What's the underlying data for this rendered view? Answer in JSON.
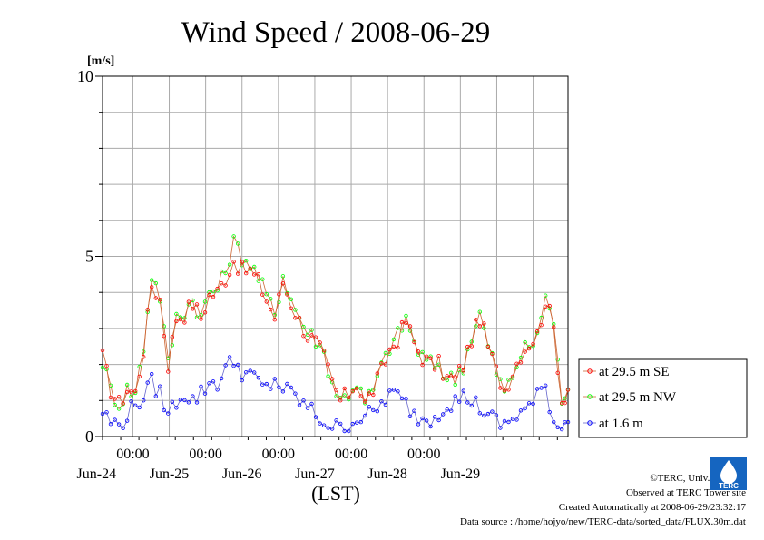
{
  "chart_data": {
    "type": "line",
    "title": "Wind Speed / 2008-06-29",
    "ylabel": "[m/s]",
    "xlabel": "(LST)",
    "ylim": [
      0,
      10
    ],
    "yticks": [
      "0",
      "5",
      "10"
    ],
    "xlim": [
      "2008-06-23 14:00",
      "2008-06-29 23:30"
    ],
    "time_tick_label": "00:00",
    "date_labels": [
      "Jun-24",
      "Jun-25",
      "Jun-26",
      "Jun-27",
      "Jun-28",
      "Jun-29"
    ],
    "time_step_hours": 0.5,
    "grid": true,
    "legend_position": "right",
    "series": [
      {
        "name": "at 29.5 m SE",
        "color": "#ff0000",
        "marker": "circle",
        "anchors": [
          [
            0,
            2.2
          ],
          [
            2,
            1.3
          ],
          [
            4,
            0.9
          ],
          [
            6,
            1.3
          ],
          [
            8,
            1.2
          ],
          [
            10,
            2.4
          ],
          [
            12,
            4.2
          ],
          [
            14,
            3.8
          ],
          [
            16,
            2.0
          ],
          [
            18,
            3.3
          ],
          [
            20,
            3.4
          ],
          [
            22,
            3.7
          ],
          [
            24,
            3.3
          ],
          [
            26,
            3.9
          ],
          [
            28,
            4.0
          ],
          [
            30,
            4.4
          ],
          [
            32,
            4.9
          ],
          [
            34,
            4.6
          ],
          [
            36,
            4.6
          ],
          [
            38,
            4.3
          ],
          [
            40,
            3.8
          ],
          [
            42,
            3.3
          ],
          [
            44,
            4.3
          ],
          [
            46,
            3.7
          ],
          [
            48,
            3.2
          ],
          [
            50,
            2.8
          ],
          [
            52,
            2.6
          ],
          [
            54,
            2.2
          ],
          [
            56,
            1.5
          ],
          [
            58,
            1.0
          ],
          [
            60,
            1.2
          ],
          [
            62,
            1.5
          ],
          [
            64,
            0.9
          ],
          [
            66,
            1.3
          ],
          [
            68,
            1.8
          ],
          [
            70,
            2.4
          ],
          [
            72,
            2.7
          ],
          [
            74,
            3.2
          ],
          [
            76,
            2.6
          ],
          [
            78,
            2.2
          ],
          [
            80,
            2.0
          ],
          [
            82,
            2.0
          ],
          [
            84,
            1.6
          ],
          [
            86,
            1.6
          ],
          [
            88,
            2.0
          ],
          [
            90,
            2.7
          ],
          [
            92,
            3.3
          ],
          [
            94,
            2.5
          ],
          [
            96,
            1.8
          ],
          [
            98,
            1.3
          ],
          [
            100,
            1.8
          ],
          [
            102,
            2.3
          ],
          [
            104,
            2.6
          ],
          [
            106,
            2.8
          ],
          [
            108,
            3.8
          ],
          [
            110,
            3.0
          ],
          [
            112,
            1.0
          ],
          [
            113.5,
            1.3
          ]
        ]
      },
      {
        "name": "at 29.5 m NW",
        "color": "#00ff00",
        "marker": "circle",
        "anchors": [
          [
            0,
            2.1
          ],
          [
            2,
            1.3
          ],
          [
            4,
            0.9
          ],
          [
            6,
            1.3
          ],
          [
            8,
            1.2
          ],
          [
            10,
            2.5
          ],
          [
            12,
            4.5
          ],
          [
            14,
            3.9
          ],
          [
            16,
            2.0
          ],
          [
            18,
            3.3
          ],
          [
            20,
            3.5
          ],
          [
            22,
            3.8
          ],
          [
            24,
            3.3
          ],
          [
            26,
            4.0
          ],
          [
            28,
            4.1
          ],
          [
            30,
            4.6
          ],
          [
            32,
            5.4
          ],
          [
            34,
            5.0
          ],
          [
            36,
            4.8
          ],
          [
            38,
            4.4
          ],
          [
            40,
            3.9
          ],
          [
            42,
            3.4
          ],
          [
            44,
            4.5
          ],
          [
            46,
            3.8
          ],
          [
            48,
            3.3
          ],
          [
            50,
            2.9
          ],
          [
            52,
            2.7
          ],
          [
            54,
            2.3
          ],
          [
            56,
            1.5
          ],
          [
            58,
            1.0
          ],
          [
            60,
            1.2
          ],
          [
            62,
            1.5
          ],
          [
            64,
            0.9
          ],
          [
            66,
            1.3
          ],
          [
            68,
            1.9
          ],
          [
            70,
            2.5
          ],
          [
            72,
            2.8
          ],
          [
            74,
            3.3
          ],
          [
            76,
            2.6
          ],
          [
            78,
            2.2
          ],
          [
            80,
            2.0
          ],
          [
            82,
            2.0
          ],
          [
            84,
            1.6
          ],
          [
            86,
            1.6
          ],
          [
            88,
            2.0
          ],
          [
            90,
            2.8
          ],
          [
            92,
            3.4
          ],
          [
            94,
            2.5
          ],
          [
            96,
            1.8
          ],
          [
            98,
            1.2
          ],
          [
            100,
            1.7
          ],
          [
            102,
            2.3
          ],
          [
            104,
            2.5
          ],
          [
            106,
            2.7
          ],
          [
            108,
            4.0
          ],
          [
            110,
            3.1
          ],
          [
            112,
            1.0
          ],
          [
            113.5,
            1.3
          ]
        ]
      },
      {
        "name": "at 1.6 m",
        "color": "#0000ff",
        "marker": "circle",
        "anchors": [
          [
            0,
            0.7
          ],
          [
            2,
            0.4
          ],
          [
            4,
            0.3
          ],
          [
            6,
            0.6
          ],
          [
            8,
            0.9
          ],
          [
            10,
            1.1
          ],
          [
            12,
            1.5
          ],
          [
            14,
            1.2
          ],
          [
            16,
            0.6
          ],
          [
            18,
            1.0
          ],
          [
            20,
            1.2
          ],
          [
            22,
            1.0
          ],
          [
            24,
            1.2
          ],
          [
            26,
            1.5
          ],
          [
            28,
            1.5
          ],
          [
            30,
            1.9
          ],
          [
            32,
            2.1
          ],
          [
            34,
            1.8
          ],
          [
            36,
            1.7
          ],
          [
            38,
            1.5
          ],
          [
            40,
            1.3
          ],
          [
            42,
            1.6
          ],
          [
            44,
            1.3
          ],
          [
            46,
            1.2
          ],
          [
            48,
            1.0
          ],
          [
            50,
            0.8
          ],
          [
            52,
            0.6
          ],
          [
            54,
            0.4
          ],
          [
            56,
            0.3
          ],
          [
            58,
            0.2
          ],
          [
            60,
            0.3
          ],
          [
            62,
            0.5
          ],
          [
            64,
            0.6
          ],
          [
            66,
            0.6
          ],
          [
            68,
            0.9
          ],
          [
            70,
            1.2
          ],
          [
            72,
            1.1
          ],
          [
            74,
            0.9
          ],
          [
            76,
            0.6
          ],
          [
            78,
            0.5
          ],
          [
            80,
            0.5
          ],
          [
            82,
            0.7
          ],
          [
            84,
            0.9
          ],
          [
            86,
            1.0
          ],
          [
            88,
            1.1
          ],
          [
            90,
            1.0
          ],
          [
            92,
            0.8
          ],
          [
            94,
            0.6
          ],
          [
            96,
            0.4
          ],
          [
            98,
            0.3
          ],
          [
            100,
            0.5
          ],
          [
            102,
            0.7
          ],
          [
            104,
            0.8
          ],
          [
            106,
            1.1
          ],
          [
            108,
            1.4
          ],
          [
            110,
            0.4
          ],
          [
            112,
            0.3
          ],
          [
            113.5,
            0.4
          ]
        ]
      }
    ]
  },
  "footer": {
    "copyright": "©TERC, Univ. Tsukuba",
    "observed": "Observed at TERC Tower site",
    "created": "Created Automatically at 2008-06-29/23:32:17",
    "source": "Data source : /home/hojyo/new/TERC-data/sorted_data/FLUX.30m.dat"
  },
  "logo": {
    "text": "TERC",
    "color": "#1565c0"
  }
}
